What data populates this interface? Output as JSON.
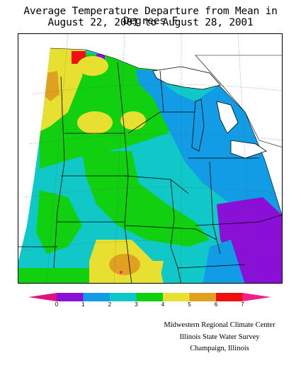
{
  "title_line1": "Average Temperature Departure from Mean in Degrees F",
  "title_line2": "August 22, 2001  to  August 28, 2001",
  "legend": {
    "tick_labels": [
      "0",
      "1",
      "2",
      "3",
      "4",
      "5",
      "6",
      "7"
    ],
    "bins": [
      {
        "range": "below 0",
        "color": "#e0107e"
      },
      {
        "range": "0-1",
        "color": "#8a10d8"
      },
      {
        "range": "1-2",
        "color": "#129ce6"
      },
      {
        "range": "2-3",
        "color": "#10c8c8"
      },
      {
        "range": "3-4",
        "color": "#10d010"
      },
      {
        "range": "4-5",
        "color": "#e8e030"
      },
      {
        "range": "5-6",
        "color": "#e0a020"
      },
      {
        "range": "6-7",
        "color": "#f01010"
      },
      {
        "range": "above 7",
        "color": "#f0208a"
      }
    ]
  },
  "credits": {
    "line1": "Midwestern Regional Climate Center",
    "line2": "Illinois State Water Survey",
    "line3": "Champaign, Illinois"
  },
  "colors": {
    "purple": "#8a10d8",
    "blue": "#129ce6",
    "cyan": "#10c8c8",
    "green": "#10d010",
    "yellow": "#e8e030",
    "orange": "#e0a020",
    "red": "#f01010",
    "magenta": "#f0208a"
  }
}
